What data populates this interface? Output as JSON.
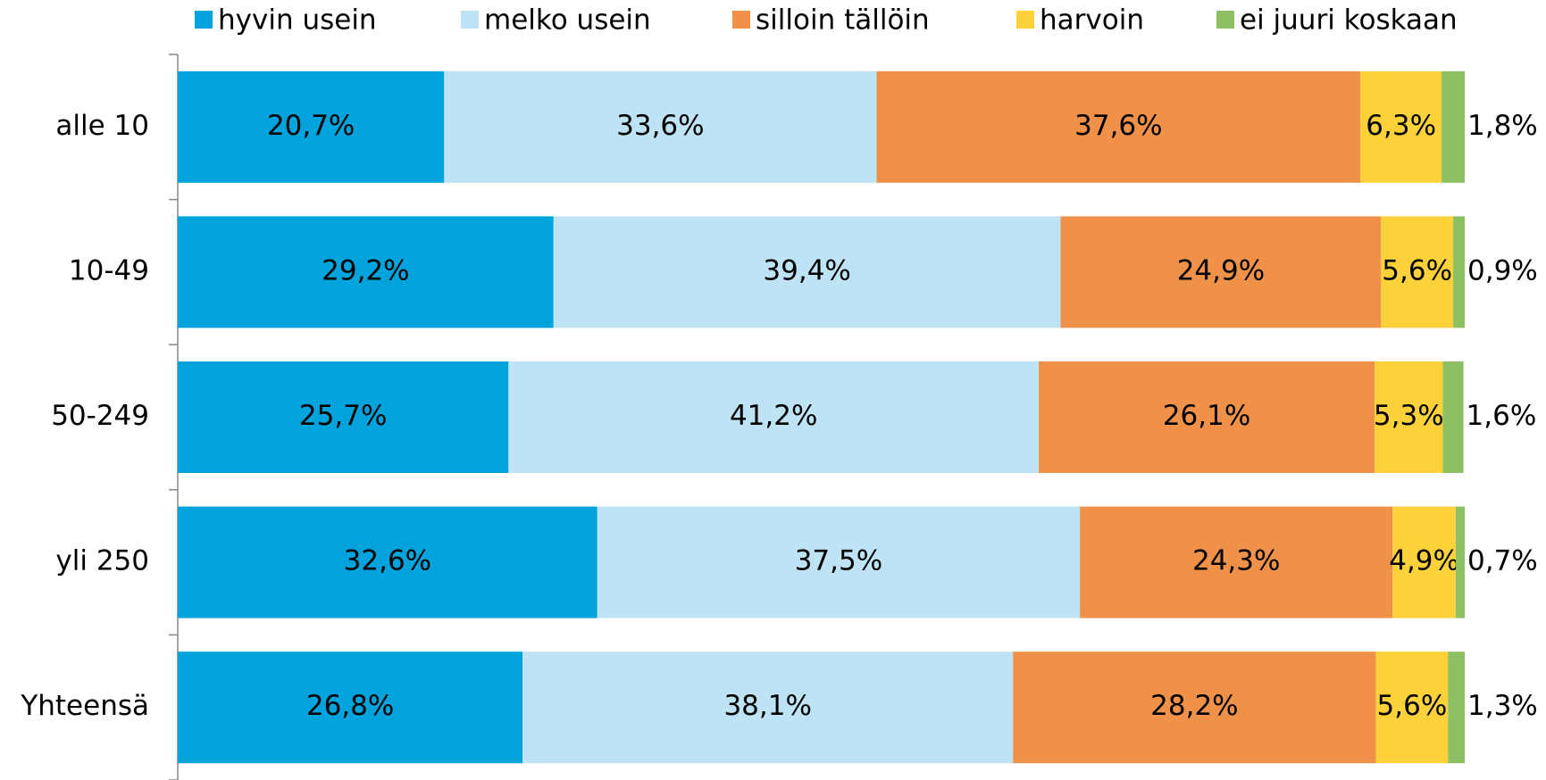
{
  "chart_data": {
    "type": "stacked_barh",
    "categories": [
      "alle 10",
      "10-49",
      "50-249",
      "yli 250",
      "Yhteensä"
    ],
    "xlim": [
      0,
      100
    ],
    "series": [
      {
        "name": "hyvin usein",
        "color": "#00a3dc",
        "values": [
          20.7,
          29.2,
          25.7,
          32.6,
          26.8
        ],
        "value_labels": [
          "20,7%",
          "29,2%",
          "25,7%",
          "32,6%",
          "26,8%"
        ]
      },
      {
        "name": "melko usein",
        "color": "#bde3f5",
        "values": [
          33.6,
          39.4,
          41.2,
          37.5,
          38.1
        ],
        "value_labels": [
          "33,6%",
          "39,4%",
          "41,2%",
          "37,5%",
          "38,1%"
        ]
      },
      {
        "name": "silloin tällöin",
        "color": "#f0914a",
        "values": [
          37.6,
          24.9,
          26.1,
          24.3,
          28.2
        ],
        "value_labels": [
          "37,6%",
          "24,9%",
          "26,1%",
          "24,3%",
          "28,2%"
        ]
      },
      {
        "name": "harvoin",
        "color": "#fdd13a",
        "values": [
          6.3,
          5.6,
          5.3,
          4.9,
          5.6
        ],
        "value_labels": [
          "6,3%",
          "5,6%",
          "5,3%",
          "4,9%",
          "5,6%"
        ]
      },
      {
        "name": "ei juuri koskaan",
        "color": "#8dc063",
        "values": [
          1.8,
          0.9,
          1.6,
          0.7,
          1.3
        ],
        "value_labels": [
          "1,8%",
          "0,9%",
          "1,6%",
          "0,7%",
          "1,3%"
        ]
      }
    ]
  }
}
